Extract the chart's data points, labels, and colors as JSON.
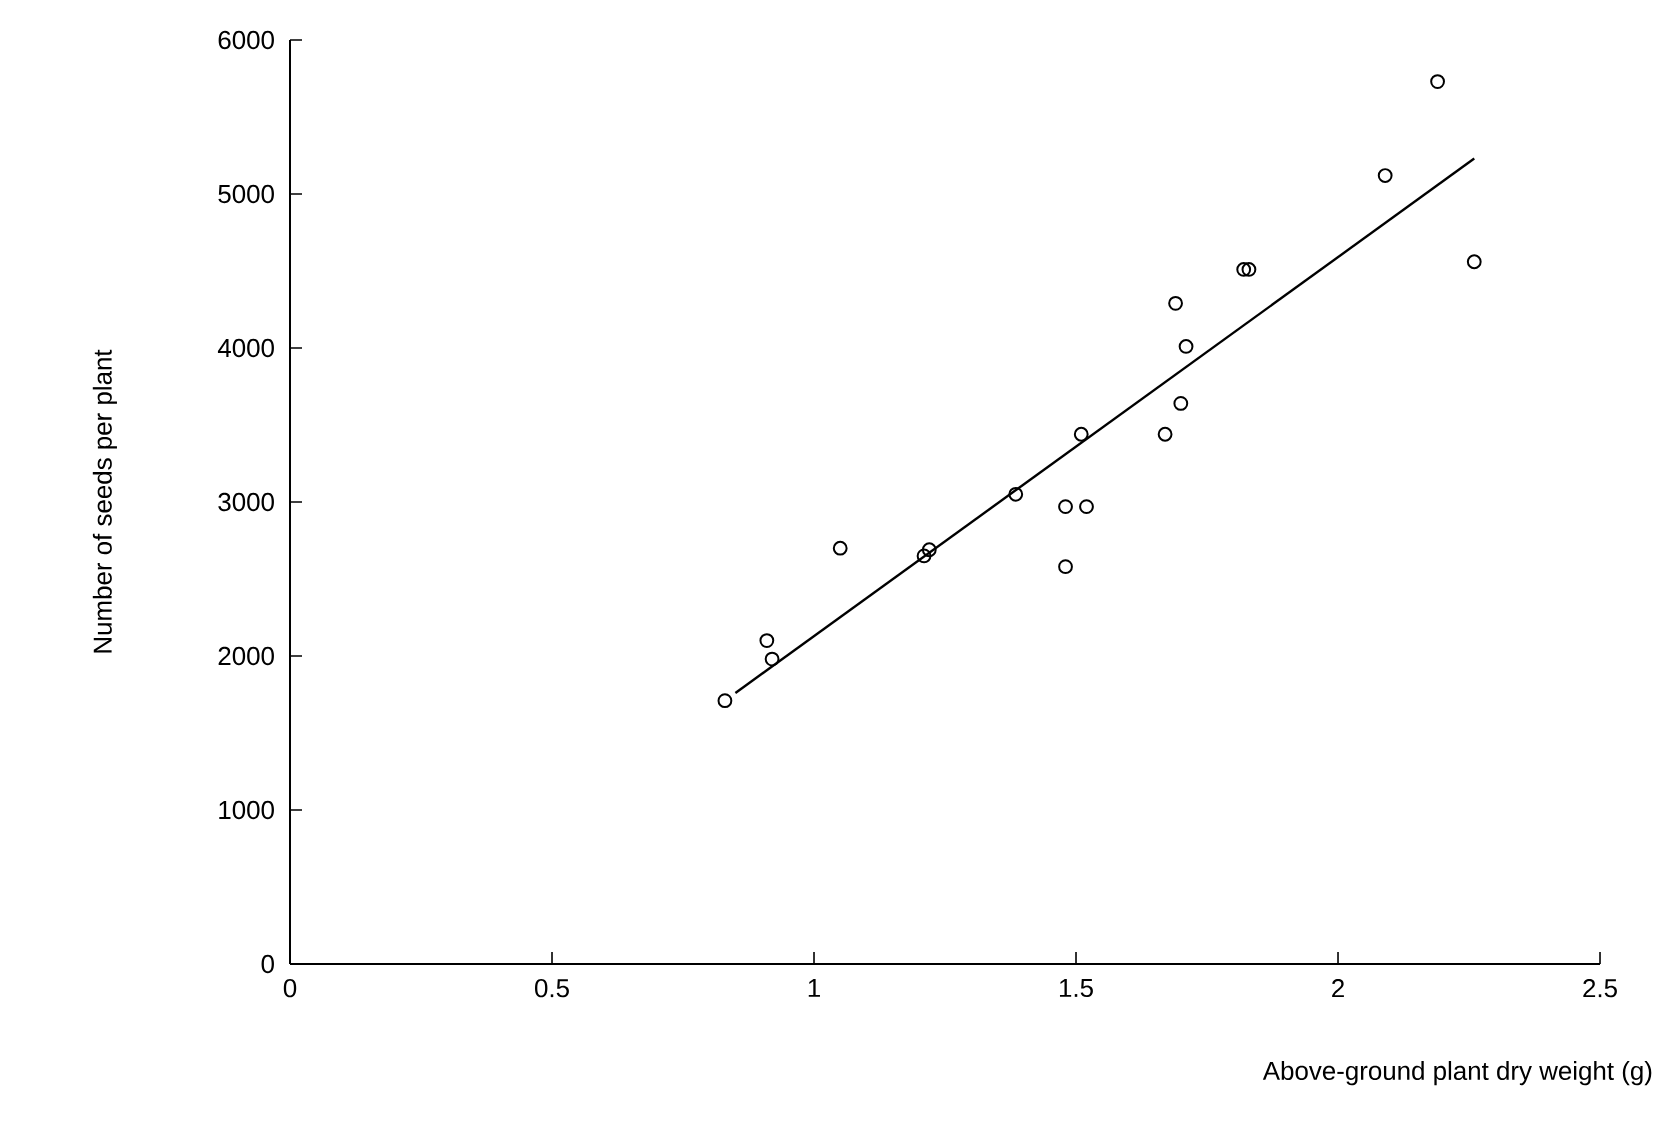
{
  "chart_data": {
    "type": "scatter",
    "xlabel": "Above-ground plant dry weight (g)",
    "ylabel": "Number of seeds per plant",
    "xlim": [
      0,
      2.5
    ],
    "ylim": [
      0,
      6000
    ],
    "xticks": [
      0,
      0.5,
      1,
      1.5,
      2,
      2.5
    ],
    "yticks": [
      0,
      1000,
      2000,
      3000,
      4000,
      5000,
      6000
    ],
    "marker": "circle",
    "grid": false,
    "series": [
      {
        "color": "#000000",
        "x": [
          0.83,
          0.91,
          0.92,
          1.05,
          1.21,
          1.22,
          1.385,
          1.48,
          1.48,
          1.52,
          1.51,
          1.67,
          1.7,
          1.69,
          1.71,
          1.82,
          1.83,
          2.09,
          2.19,
          2.26
        ],
        "values": [
          1710,
          2100,
          1980,
          2700,
          2650,
          2690,
          3050,
          2580,
          2970,
          2970,
          3440,
          3440,
          3640,
          4290,
          4010,
          4510,
          4510,
          5120,
          5730,
          4560
        ]
      },
      {
        "type": "line",
        "color": "#000000",
        "marker": "none",
        "x": [
          0.85,
          2.26
        ],
        "values": [
          1760,
          5230
        ]
      }
    ]
  }
}
